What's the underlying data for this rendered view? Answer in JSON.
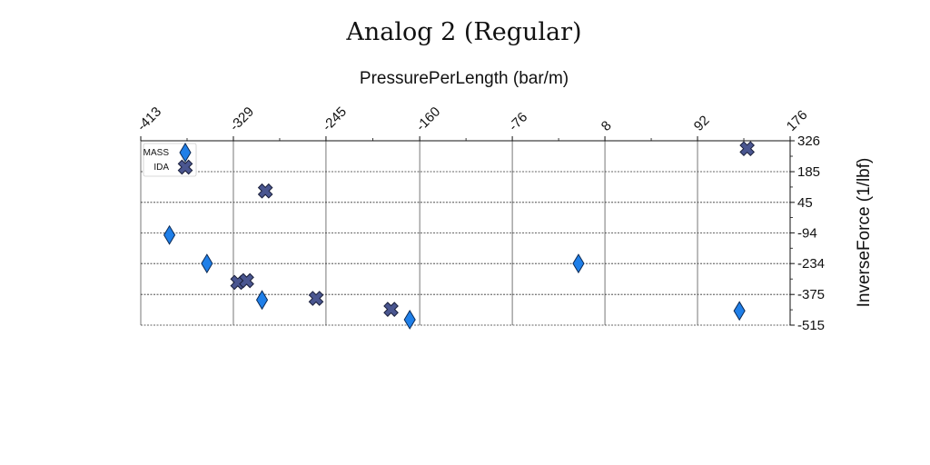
{
  "chart_data": {
    "type": "scatter",
    "title": "Analog 2 (Regular)",
    "xlabel": "PressurePerLength (bar/m)",
    "ylabel": "InverseForce (1/lbf)",
    "xlim": [
      -413,
      176
    ],
    "ylim": [
      -515,
      326
    ],
    "x_ticks": [
      "-413",
      "-329",
      "-245",
      "-160",
      "-76",
      "8",
      "92",
      "176"
    ],
    "y_ticks": [
      "326",
      "185",
      "45",
      "-94",
      "-234",
      "-375",
      "-515"
    ],
    "grid": true,
    "legend_position": "top-left",
    "series": [
      {
        "name": "MASS",
        "marker": "diamond",
        "color": "#1f7fe8",
        "points": [
          {
            "x": -387,
            "y": -104
          },
          {
            "x": -353,
            "y": -234
          },
          {
            "x": -303,
            "y": -400
          },
          {
            "x": -169,
            "y": -490
          },
          {
            "x": -16,
            "y": -234
          },
          {
            "x": 130,
            "y": -450
          }
        ]
      },
      {
        "name": "IDA",
        "marker": "x",
        "color": "#4a5690",
        "points": [
          {
            "x": 137,
            "y": 290
          },
          {
            "x": -300,
            "y": 97
          },
          {
            "x": -325,
            "y": -320
          },
          {
            "x": -317,
            "y": -312
          },
          {
            "x": -254,
            "y": -393
          },
          {
            "x": -186,
            "y": -443
          }
        ]
      }
    ]
  }
}
